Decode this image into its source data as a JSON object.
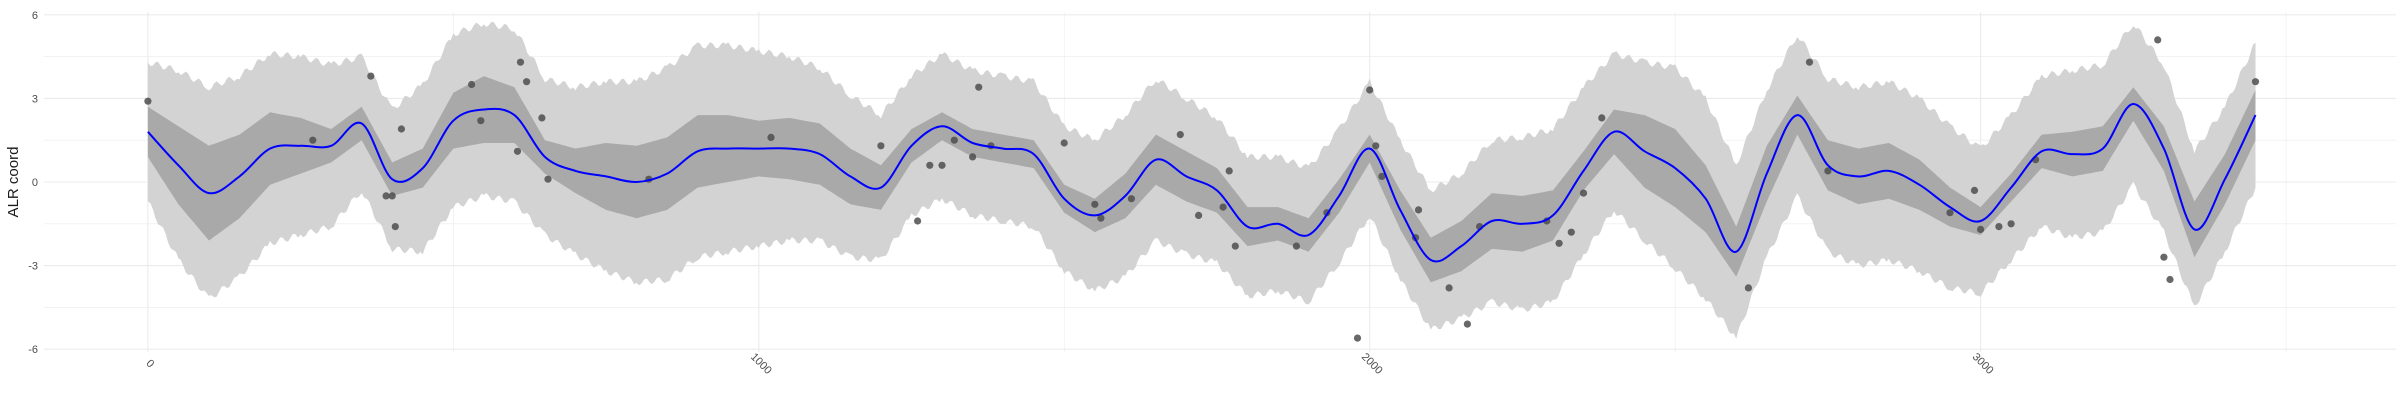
{
  "chart_data": {
    "type": "line",
    "ylabel": "ALR coord",
    "xlabel": "",
    "xlim": [
      -170,
      3680
    ],
    "ylim": [
      -6.1,
      6.1
    ],
    "x_ticks": [
      0,
      1000,
      2000,
      3000
    ],
    "x_tick_labels": [
      "0",
      "1000",
      "2000",
      "3000"
    ],
    "y_ticks": [
      -6,
      -3,
      0,
      3,
      6
    ],
    "y_tick_labels": [
      "-6",
      "-3",
      "0",
      "3",
      "6"
    ],
    "grid": true,
    "colors": {
      "mean_line": "#0000ff",
      "inner_band": "#a9a9a9",
      "outer_band": "#d3d3d3",
      "points": "#4d4d4d",
      "grid": "#ebebeb"
    },
    "series": [
      {
        "kind": "mean_line",
        "x": [
          0,
          50,
          100,
          150,
          200,
          250,
          300,
          350,
          400,
          450,
          500,
          550,
          600,
          650,
          700,
          750,
          800,
          850,
          900,
          950,
          1000,
          1050,
          1100,
          1150,
          1200,
          1250,
          1300,
          1350,
          1400,
          1450,
          1500,
          1550,
          1600,
          1650,
          1700,
          1750,
          1800,
          1850,
          1900,
          1950,
          2000,
          2050,
          2100,
          2150,
          2200,
          2250,
          2300,
          2350,
          2400,
          2450,
          2500,
          2550,
          2600,
          2650,
          2700,
          2750,
          2800,
          2850,
          2900,
          2950,
          3000,
          3050,
          3100,
          3150,
          3200,
          3250,
          3300,
          3350,
          3400,
          3450
        ],
        "y": [
          1.8,
          0.6,
          -0.4,
          0.2,
          1.2,
          1.3,
          1.3,
          2.1,
          0.1,
          0.5,
          2.2,
          2.6,
          2.4,
          0.9,
          0.4,
          0.2,
          0.0,
          0.3,
          1.1,
          1.2,
          1.2,
          1.2,
          1.0,
          0.2,
          -0.2,
          1.3,
          2.0,
          1.4,
          1.2,
          1.0,
          -0.6,
          -1.2,
          -0.5,
          0.8,
          0.2,
          -0.3,
          -1.6,
          -1.5,
          -1.9,
          -0.5,
          1.2,
          -1.0,
          -2.8,
          -2.3,
          -1.4,
          -1.5,
          -1.2,
          0.4,
          1.8,
          1.1,
          0.5,
          -0.6,
          -2.5,
          0.3,
          2.4,
          0.6,
          0.2,
          0.4,
          -0.1,
          -0.9,
          -1.4,
          -0.2,
          1.1,
          1.0,
          1.2,
          2.8,
          1.2,
          -1.7,
          0.1,
          2.4
        ]
      },
      {
        "kind": "inner_band_halfwidth",
        "x": [
          0,
          50,
          100,
          150,
          200,
          250,
          300,
          350,
          400,
          450,
          500,
          550,
          600,
          650,
          700,
          750,
          800,
          850,
          900,
          950,
          1000,
          1050,
          1100,
          1150,
          1200,
          1250,
          1300,
          1350,
          1400,
          1450,
          1500,
          1550,
          1600,
          1650,
          1700,
          1750,
          1800,
          1850,
          1900,
          1950,
          2000,
          2050,
          2100,
          2150,
          2200,
          2250,
          2300,
          2350,
          2400,
          2450,
          2500,
          2550,
          2600,
          2650,
          2700,
          2750,
          2800,
          2850,
          2900,
          2950,
          3000,
          3050,
          3100,
          3150,
          3200,
          3250,
          3300,
          3350,
          3400,
          3450
        ],
        "y": [
          0.9,
          1.4,
          1.7,
          1.5,
          1.3,
          1.0,
          0.6,
          0.6,
          0.6,
          0.7,
          1.0,
          1.2,
          1.0,
          0.6,
          0.8,
          1.2,
          1.3,
          1.3,
          1.3,
          1.2,
          1.0,
          1.1,
          1.1,
          1.0,
          0.8,
          0.6,
          0.5,
          0.5,
          0.5,
          0.5,
          0.5,
          0.6,
          0.8,
          0.9,
          0.9,
          0.8,
          0.7,
          0.6,
          0.6,
          0.6,
          0.5,
          0.7,
          0.8,
          0.9,
          1.0,
          1.0,
          0.9,
          0.7,
          0.8,
          1.3,
          1.4,
          1.2,
          0.9,
          1.0,
          0.7,
          0.9,
          1.0,
          1.0,
          0.9,
          0.7,
          0.5,
          0.5,
          0.6,
          0.8,
          0.8,
          0.6,
          0.8,
          1.0,
          0.9,
          0.9
        ]
      },
      {
        "kind": "outer_band_halfwidth",
        "x": [
          0,
          50,
          100,
          150,
          200,
          250,
          300,
          350,
          400,
          450,
          500,
          550,
          600,
          650,
          700,
          750,
          800,
          850,
          900,
          950,
          1000,
          1050,
          1100,
          1150,
          1200,
          1250,
          1300,
          1350,
          1400,
          1450,
          1500,
          1550,
          1600,
          1650,
          1700,
          1750,
          1800,
          1850,
          1900,
          1950,
          2000,
          2050,
          2100,
          2150,
          2200,
          2250,
          2300,
          2350,
          2400,
          2450,
          2500,
          2550,
          2600,
          2650,
          2700,
          2750,
          2800,
          2850,
          2900,
          2950,
          3000,
          3050,
          3100,
          3150,
          3200,
          3250,
          3300,
          3350,
          3400,
          3450
        ],
        "y": [
          2.5,
          3.4,
          3.8,
          3.6,
          3.4,
          3.2,
          2.9,
          2.4,
          2.5,
          3.0,
          3.1,
          3.1,
          3.1,
          2.8,
          3.0,
          3.4,
          3.6,
          3.8,
          3.8,
          3.7,
          3.5,
          3.3,
          3.1,
          2.9,
          2.6,
          2.5,
          2.6,
          2.6,
          2.6,
          2.6,
          2.6,
          2.7,
          2.9,
          2.9,
          2.8,
          2.6,
          2.5,
          2.4,
          2.4,
          2.4,
          2.4,
          2.5,
          2.5,
          2.6,
          2.9,
          3.1,
          3.1,
          3.0,
          2.8,
          3.2,
          3.6,
          3.6,
          3.1,
          3.0,
          2.9,
          3.1,
          3.2,
          3.2,
          3.1,
          2.9,
          2.6,
          2.6,
          2.7,
          3.0,
          3.0,
          2.9,
          3.0,
          2.8,
          2.6,
          2.6
        ]
      },
      {
        "kind": "observations",
        "points": [
          [
            0,
            2.9
          ],
          [
            270,
            1.5
          ],
          [
            365,
            3.8
          ],
          [
            390,
            -0.5
          ],
          [
            400,
            -0.5
          ],
          [
            405,
            -1.6
          ],
          [
            415,
            1.9
          ],
          [
            530,
            3.5
          ],
          [
            545,
            2.2
          ],
          [
            610,
            4.3
          ],
          [
            605,
            1.1
          ],
          [
            620,
            3.6
          ],
          [
            645,
            2.3
          ],
          [
            655,
            0.1
          ],
          [
            820,
            0.1
          ],
          [
            1020,
            1.6
          ],
          [
            1200,
            1.3
          ],
          [
            1260,
            -1.4
          ],
          [
            1280,
            0.6
          ],
          [
            1320,
            1.5
          ],
          [
            1300,
            0.6
          ],
          [
            1350,
            0.9
          ],
          [
            1360,
            3.4
          ],
          [
            1380,
            1.3
          ],
          [
            1500,
            1.4
          ],
          [
            1550,
            -0.8
          ],
          [
            1560,
            -1.3
          ],
          [
            1610,
            -0.6
          ],
          [
            1690,
            1.7
          ],
          [
            1720,
            -1.2
          ],
          [
            1760,
            -0.9
          ],
          [
            1770,
            0.4
          ],
          [
            1780,
            -2.3
          ],
          [
            1880,
            -2.3
          ],
          [
            1930,
            -1.1
          ],
          [
            1980,
            -5.6
          ],
          [
            2000,
            3.3
          ],
          [
            2010,
            1.3
          ],
          [
            2020,
            0.2
          ],
          [
            2080,
            -1.0
          ],
          [
            2075,
            -2.0
          ],
          [
            2130,
            -3.8
          ],
          [
            2160,
            -5.1
          ],
          [
            2180,
            -1.6
          ],
          [
            2290,
            -1.4
          ],
          [
            2310,
            -2.2
          ],
          [
            2350,
            -0.4
          ],
          [
            2380,
            2.3
          ],
          [
            2330,
            -1.8
          ],
          [
            2620,
            -3.8
          ],
          [
            2720,
            4.3
          ],
          [
            2750,
            0.4
          ],
          [
            2950,
            -1.1
          ],
          [
            2990,
            -0.3
          ],
          [
            3000,
            -1.7
          ],
          [
            3030,
            -1.6
          ],
          [
            3050,
            -1.5
          ],
          [
            3090,
            0.8
          ],
          [
            3290,
            5.1
          ],
          [
            3300,
            -2.7
          ],
          [
            3310,
            -3.5
          ],
          [
            3450,
            3.6
          ]
        ]
      }
    ]
  }
}
